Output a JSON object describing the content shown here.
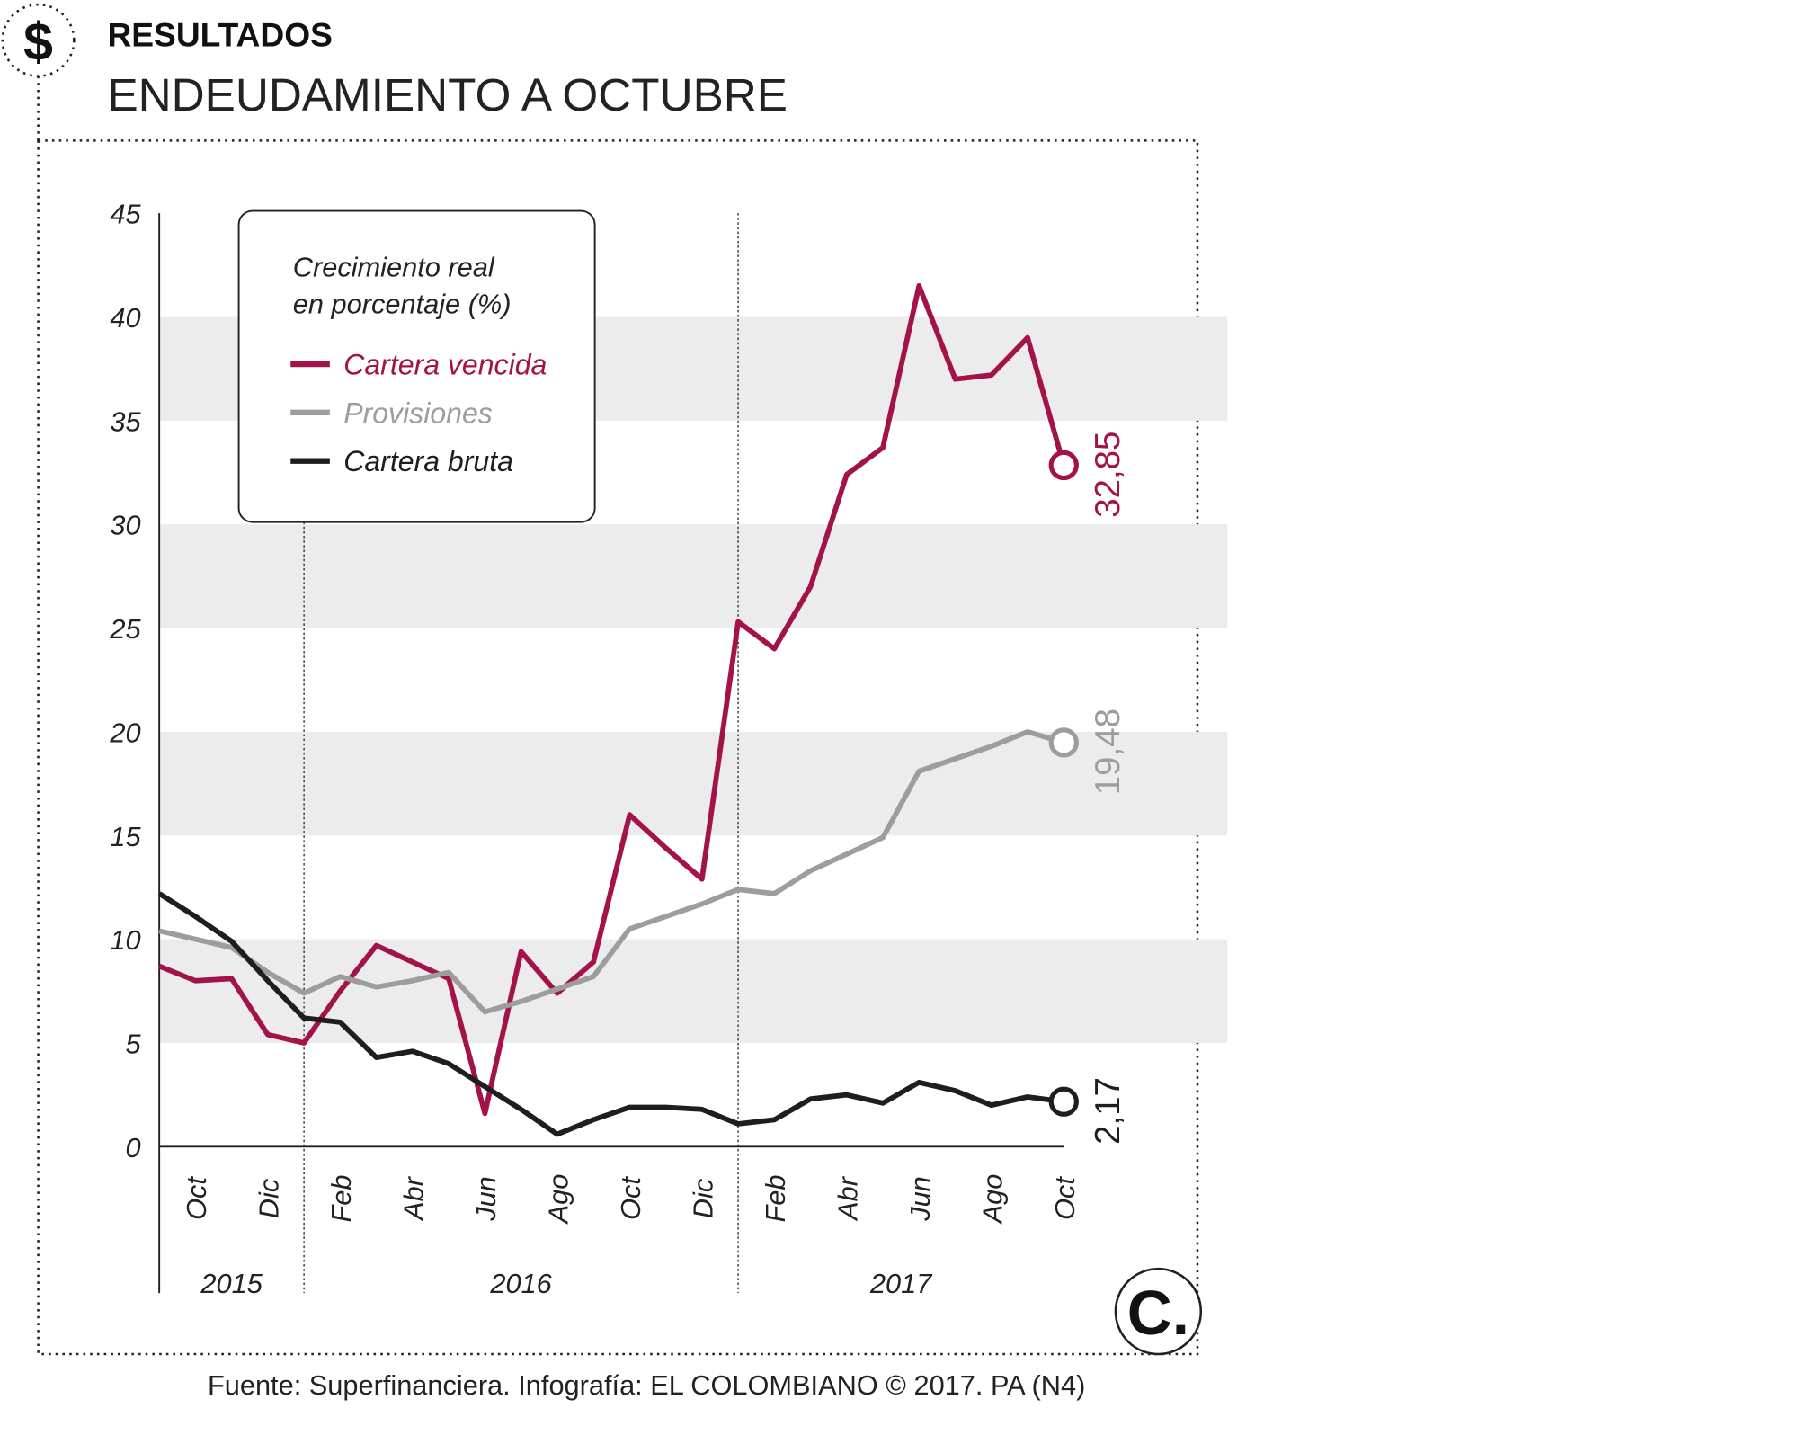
{
  "header": {
    "section": "RESULTADOS",
    "icon": "$",
    "logo": "C.",
    "source": "Fuente: Superfinanciera. Infografía: EL COLOMBIANO © 2017. PA (N4)"
  },
  "chart_data": {
    "type": "line",
    "title": "ENDEUDAMIENTO A OCTUBRE",
    "legend_title": [
      "Crecimiento real",
      "en porcentaje (%)"
    ],
    "categories": [
      null,
      "Oct",
      null,
      "Dic",
      null,
      "Feb",
      null,
      "Abr",
      null,
      "Jun",
      null,
      "Ago",
      null,
      "Oct",
      null,
      "Dic",
      null,
      "Feb",
      null,
      "Abr",
      null,
      "Jun",
      null,
      "Ago",
      null,
      "Oct"
    ],
    "x_groups": [
      {
        "label": "2015",
        "count": 4
      },
      {
        "label": "2016",
        "count": 12
      },
      {
        "label": "2017",
        "count": 10
      }
    ],
    "series": [
      {
        "name": "Cartera vencida",
        "color": "#a3134a",
        "values": [
          8.7,
          8.0,
          8.1,
          5.4,
          5.0,
          7.5,
          9.7,
          8.9,
          8.1,
          1.6,
          9.4,
          7.4,
          8.9,
          16.0,
          14.4,
          12.9,
          25.3,
          24.0,
          27.0,
          32.4,
          33.7,
          41.5,
          37.0,
          37.2,
          39.0,
          32.85
        ],
        "value_labels": [
          null,
          null,
          null,
          null,
          null,
          null,
          null,
          null,
          null,
          null,
          null,
          null,
          null,
          null,
          null,
          null,
          null,
          null,
          null,
          null,
          null,
          null,
          null,
          null,
          null,
          "32,85"
        ]
      },
      {
        "name": "Provisiones",
        "color": "#9d9d9d",
        "values": [
          10.4,
          10.0,
          9.6,
          8.4,
          7.4,
          8.2,
          7.7,
          8.0,
          8.4,
          6.5,
          7.0,
          7.6,
          8.2,
          10.5,
          11.1,
          11.7,
          12.4,
          12.2,
          13.3,
          14.1,
          14.9,
          18.1,
          18.7,
          19.3,
          20.0,
          19.48
        ],
        "value_labels": [
          null,
          null,
          null,
          null,
          null,
          null,
          null,
          null,
          null,
          null,
          null,
          null,
          null,
          null,
          null,
          null,
          null,
          null,
          null,
          null,
          null,
          null,
          null,
          null,
          null,
          "19,48"
        ]
      },
      {
        "name": "Cartera bruta",
        "color": "#1e1e1e",
        "values": [
          12.2,
          11.1,
          9.9,
          8.0,
          6.2,
          6.0,
          4.3,
          4.6,
          4.0,
          2.9,
          1.8,
          0.6,
          1.3,
          1.9,
          1.9,
          1.8,
          1.1,
          1.3,
          2.3,
          2.5,
          2.1,
          3.1,
          2.7,
          2.0,
          2.4,
          2.17
        ],
        "value_labels": [
          null,
          null,
          null,
          null,
          null,
          null,
          null,
          null,
          null,
          null,
          null,
          null,
          null,
          null,
          null,
          null,
          null,
          null,
          null,
          null,
          null,
          null,
          null,
          null,
          null,
          "2,17"
        ]
      }
    ],
    "ylim": [
      0,
      45
    ],
    "yticks": [
      0,
      5,
      10,
      15,
      20,
      25,
      30,
      35,
      40,
      45
    ],
    "grid": "bands"
  }
}
